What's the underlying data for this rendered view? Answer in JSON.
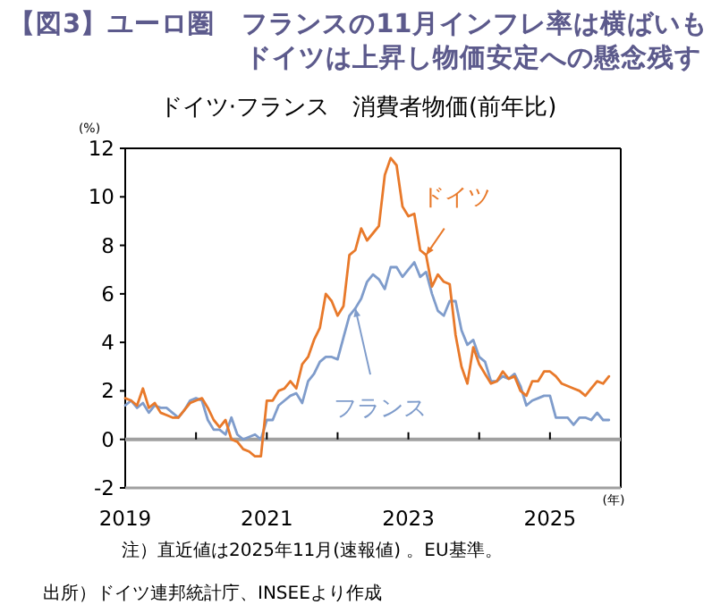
{
  "chart_data": {
    "type": "line",
    "title": "【図3】ユーロ圏　フランスの11月インフレ率は横ばいも",
    "subtitle": "ドイツは上昇し物価安定への懸念残す",
    "ylabel": "(%)",
    "xlabel": "(年)",
    "x": [
      "2019-01",
      "2019-02",
      "2019-03",
      "2019-04",
      "2019-05",
      "2019-06",
      "2019-07",
      "2019-08",
      "2019-09",
      "2019-10",
      "2019-11",
      "2019-12",
      "2020-01",
      "2020-02",
      "2020-03",
      "2020-04",
      "2020-05",
      "2020-06",
      "2020-07",
      "2020-08",
      "2020-09",
      "2020-10",
      "2020-11",
      "2020-12",
      "2021-01",
      "2021-02",
      "2021-03",
      "2021-04",
      "2021-05",
      "2021-06",
      "2021-07",
      "2021-08",
      "2021-09",
      "2021-10",
      "2021-11",
      "2021-12",
      "2022-01",
      "2022-02",
      "2022-03",
      "2022-04",
      "2022-05",
      "2022-06",
      "2022-07",
      "2022-08",
      "2022-09",
      "2022-10",
      "2022-11",
      "2022-12",
      "2023-01",
      "2023-02",
      "2023-03",
      "2023-04",
      "2023-05",
      "2023-06",
      "2023-07",
      "2023-08",
      "2023-09",
      "2023-10",
      "2023-11",
      "2023-12",
      "2024-01",
      "2024-02",
      "2024-03",
      "2024-04",
      "2024-05",
      "2024-06",
      "2024-07",
      "2024-08",
      "2024-09",
      "2024-10",
      "2024-11",
      "2024-12",
      "2025-01",
      "2025-02",
      "2025-03",
      "2025-04",
      "2025-05",
      "2025-06",
      "2025-07",
      "2025-08",
      "2025-09",
      "2025-10",
      "2025-11"
    ],
    "series": [
      {
        "name": "ドイツ",
        "color": "#e8792a",
        "values": [
          1.7,
          1.6,
          1.4,
          2.1,
          1.3,
          1.5,
          1.1,
          1.0,
          0.9,
          0.9,
          1.2,
          1.5,
          1.6,
          1.7,
          1.3,
          0.8,
          0.5,
          0.8,
          0.0,
          -0.1,
          -0.4,
          -0.5,
          -0.7,
          -0.7,
          1.6,
          1.6,
          2.0,
          2.1,
          2.4,
          2.1,
          3.1,
          3.4,
          4.1,
          4.6,
          6.0,
          5.7,
          5.1,
          5.5,
          7.6,
          7.8,
          8.7,
          8.2,
          8.5,
          8.8,
          10.9,
          11.6,
          11.3,
          9.6,
          9.2,
          9.3,
          7.8,
          7.6,
          6.3,
          6.8,
          6.5,
          6.4,
          4.3,
          3.0,
          2.3,
          3.8,
          3.1,
          2.7,
          2.3,
          2.4,
          2.8,
          2.5,
          2.6,
          2.0,
          1.8,
          2.4,
          2.4,
          2.8,
          2.8,
          2.6,
          2.3,
          2.2,
          2.1,
          2.0,
          1.8,
          2.1,
          2.4,
          2.3,
          2.6
        ]
      },
      {
        "name": "フランス",
        "color": "#7f9ccb",
        "values": [
          1.4,
          1.6,
          1.3,
          1.5,
          1.1,
          1.4,
          1.3,
          1.3,
          1.1,
          0.9,
          1.2,
          1.6,
          1.7,
          1.6,
          0.8,
          0.4,
          0.4,
          0.2,
          0.9,
          0.2,
          0.0,
          0.1,
          0.2,
          0.0,
          0.8,
          0.8,
          1.4,
          1.6,
          1.8,
          1.9,
          1.5,
          2.4,
          2.7,
          3.2,
          3.4,
          3.4,
          3.3,
          4.2,
          5.1,
          5.4,
          5.8,
          6.5,
          6.8,
          6.6,
          6.2,
          7.1,
          7.1,
          6.7,
          7.0,
          7.3,
          6.7,
          6.9,
          6.0,
          5.3,
          5.1,
          5.7,
          5.7,
          4.5,
          3.9,
          4.1,
          3.4,
          3.2,
          2.4,
          2.4,
          2.6,
          2.5,
          2.7,
          2.2,
          1.4,
          1.6,
          1.7,
          1.8,
          1.8,
          0.9,
          0.9,
          0.9,
          0.6,
          0.9,
          0.9,
          0.8,
          1.1,
          0.8,
          0.8
        ]
      }
    ],
    "xlim": [
      "2019-01",
      "2026-01"
    ],
    "xticks": [
      {
        "value": "2019-01",
        "label": "2019"
      },
      {
        "value": "2020-01",
        "label": null
      },
      {
        "value": "2021-01",
        "label": "2021"
      },
      {
        "value": "2022-01",
        "label": null
      },
      {
        "value": "2023-01",
        "label": "2023"
      },
      {
        "value": "2024-01",
        "label": null
      },
      {
        "value": "2025-01",
        "label": "2025"
      }
    ],
    "ylim": [
      -2,
      12
    ],
    "yticks": [
      -2,
      0,
      2,
      4,
      6,
      8,
      10,
      12
    ],
    "ref_lines": [
      {
        "axis": "y",
        "value": 0,
        "color": "#a0a0a0"
      }
    ],
    "grid": false,
    "annotations": [
      "ドイツ·フランス　消費者物価(前年比)",
      "注）直近値は2025年11月(速報値) 。EU基準。",
      "出所）ドイツ連邦統計庁、INSEEより作成"
    ]
  }
}
